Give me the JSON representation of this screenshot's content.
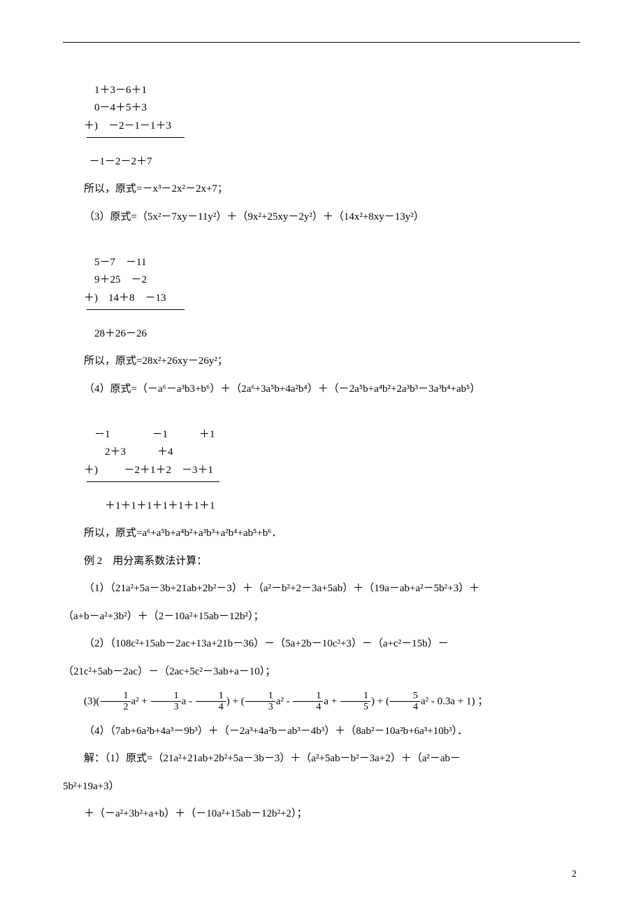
{
  "calc1": {
    "line1": "    1＋3－6＋1",
    "line2": "    0－4＋5＋3",
    "line3": "＋)　－2－1－1＋3",
    "result": "  －1－2－2＋7"
  },
  "result1": "所以，原式=－x³－2x²－2x+7；",
  "expr3": "（3）原式=（5x²－7xy－11y²）＋（9x²+25xy－2y²）＋（14x²+8xy－13y²）",
  "calc2": {
    "line1": "    5－7　－11",
    "line2": "    9＋25　－2",
    "line3": "＋)　14＋8　－13",
    "result": "    28＋26－26"
  },
  "result2": "所以，原式=28x²+26xy－26y²；",
  "expr4": "（4）原式=（－a⁶－a³b3+b⁶）＋（2a⁶+3a⁵b+4a²b⁴）＋（－2a⁵b+a⁴b²+2a³b³－3a³b⁴+ab⁵）",
  "calc3": {
    "line1": "    －1　　　　－1　　　＋1",
    "line2": "　　2＋3　　　＋4",
    "line3": "＋)　　  －2＋1＋2　－3＋1",
    "result": "　　＋1＋1＋1＋1＋1＋1＋1"
  },
  "result3": "所以，原式=a⁶+a⁵b+a⁴b²+a³b³+a²b⁴+ab⁵+b⁶．",
  "example2_title": "例 2　用分离系数法计算：",
  "ex2_1_a": "（1）（21a²+5a－3b+21ab+2b²－3）＋（a²－b²+2－3a+5ab）＋（19a－ab+a²－5b²+3）＋",
  "ex2_1_b": "（a+b－a²+3b²）＋（2－10a²+15ab－12b²）；",
  "ex2_2_a": "（2）（108c²+15ab－2ac+13a+21b－36）－（5a+2b－10c²+3）－（a+c²－15b）－",
  "ex2_2_b": "（21c²+5ab－2ac）－（2ac+5c²－3ab+a－10）；",
  "ex2_3_prefix": "(3)(",
  "ex2_3_mid1": "a² + ",
  "ex2_3_mid2": "a - ",
  "ex2_3_mid3": ") + (",
  "ex2_3_mid4": "a² - ",
  "ex2_3_mid5": "a + ",
  "ex2_3_mid6": ") + (",
  "ex2_3_mid7": "a² - 0.3a + 1) ；",
  "f12n": "1",
  "f12d": "2",
  "f13n": "1",
  "f13d": "3",
  "f14n": "1",
  "f14d": "4",
  "f13bn": "1",
  "f13bd": "3",
  "f14bn": "1",
  "f14bd": "4",
  "f15n": "1",
  "f15d": "5",
  "f54n": "5",
  "f54d": "4",
  "ex2_4": "（4）（7ab+6a²b+4a³－9b³）＋（－2a³+4a²b－ab³－4b³）＋（8ab²－10a²b+6a³+10b³）．",
  "solution_a": "解：（1）原式=（21a²+21ab+2b²+5a－3b－3）＋（a²+5ab－b²－3a+2）＋（a²－ab－",
  "solution_b": "5b²+19a+3）",
  "solution_c": "＋（－a²+3b²+a+b）＋（－10a²+15ab－12b²+2）；",
  "page_number": "2"
}
